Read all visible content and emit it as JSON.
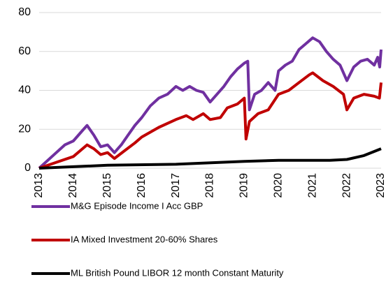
{
  "chart_data": {
    "type": "line",
    "series": [
      {
        "name": "M&G Episode Income I Acc GBP",
        "color": "#7030a0",
        "x": [
          2013,
          2013.5,
          2013.75,
          2014,
          2014.25,
          2014.4,
          2014.6,
          2014.8,
          2015,
          2015.2,
          2015.4,
          2015.6,
          2015.8,
          2016,
          2016.25,
          2016.5,
          2016.75,
          2017,
          2017.2,
          2017.4,
          2017.6,
          2017.8,
          2018,
          2018.2,
          2018.4,
          2018.6,
          2018.8,
          2019,
          2019.1,
          2019.15,
          2019.3,
          2019.5,
          2019.7,
          2019.9,
          2020,
          2020.2,
          2020.4,
          2020.6,
          2020.8,
          2021,
          2021.2,
          2021.4,
          2021.6,
          2021.8,
          2022,
          2022.2,
          2022.4,
          2022.6,
          2022.8,
          2022.9,
          2022.96,
          2023
        ],
        "values": [
          0,
          8,
          12,
          14,
          19,
          22,
          17,
          11,
          12,
          8,
          12,
          17,
          22,
          26,
          32,
          36,
          38,
          42,
          40,
          42,
          40,
          39,
          34,
          38,
          42,
          47,
          51,
          54,
          55,
          30,
          38,
          40,
          44,
          40,
          50,
          53,
          55,
          61,
          64,
          67,
          65,
          60,
          56,
          53,
          45,
          52,
          55,
          56,
          53,
          57,
          52,
          61
        ]
      },
      {
        "name": "IA Mixed Investment 20-60% Shares",
        "color": "#c00000",
        "x": [
          2013,
          2013.5,
          2014,
          2014.4,
          2014.6,
          2014.8,
          2015,
          2015.2,
          2015.5,
          2015.8,
          2016,
          2016.5,
          2017,
          2017.3,
          2017.5,
          2017.8,
          2018,
          2018.3,
          2018.5,
          2018.8,
          2019,
          2019.05,
          2019.15,
          2019.4,
          2019.7,
          2020,
          2020.3,
          2020.6,
          2020.9,
          2021,
          2021.3,
          2021.6,
          2021.9,
          2022,
          2022.2,
          2022.5,
          2022.8,
          2022.95,
          2023
        ],
        "values": [
          0,
          3,
          6,
          12,
          10,
          7,
          8,
          5,
          9,
          13,
          16,
          21,
          25,
          27,
          25,
          28,
          25,
          26,
          31,
          33,
          36,
          15,
          24,
          28,
          30,
          38,
          40,
          44,
          48,
          49,
          45,
          42,
          38,
          30,
          36,
          38,
          37,
          36,
          44
        ]
      },
      {
        "name": "ML British Pound LIBOR 12 month Constant Maturity",
        "color": "#000000",
        "x": [
          2013,
          2015,
          2017,
          2019,
          2020,
          2021.5,
          2022,
          2022.5,
          2023
        ],
        "values": [
          0,
          1.5,
          2,
          3.5,
          4,
          4,
          4.5,
          6.5,
          10
        ]
      }
    ],
    "xlim": [
      2013,
      2023
    ],
    "xticks": [
      2013,
      2014,
      2015,
      2016,
      2017,
      2018,
      2019,
      2020,
      2021,
      2022,
      2023
    ],
    "ylim": [
      0,
      80
    ],
    "yticks": [
      0,
      20,
      40,
      60,
      80
    ],
    "grid": true,
    "legend": "bottom"
  }
}
